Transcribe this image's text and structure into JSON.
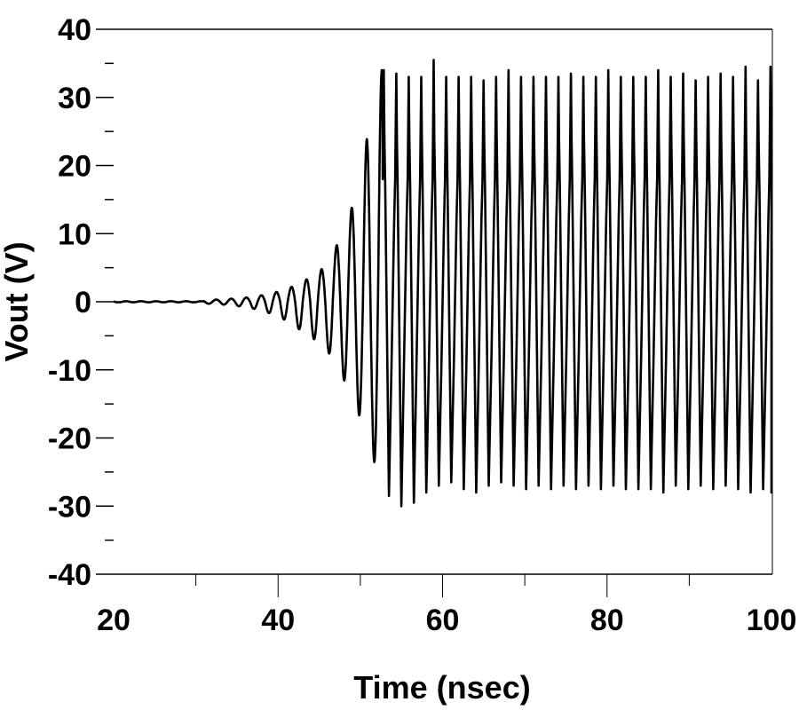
{
  "chart_data": {
    "type": "line",
    "title": "",
    "xlabel": "Time (nsec)",
    "ylabel": "Vout (V)",
    "xlim": [
      17.8,
      100
    ],
    "ylim": [
      -40,
      40
    ],
    "x_ticks": [
      20,
      40,
      60,
      80,
      100
    ],
    "x_minor_ticks": [
      30,
      50,
      70,
      90
    ],
    "y_ticks": [
      40,
      30,
      20,
      10,
      0,
      -10,
      -20,
      -30,
      -40
    ],
    "y_minor_ticks": [
      35,
      25,
      15,
      5,
      -5,
      -15,
      -25,
      -35
    ],
    "grid": false,
    "legend": null,
    "line_color": "#000000",
    "series": [
      {
        "name": "Vout",
        "description": "Oscillator start-up: flat near 0 V from 20 to ~31 ns, exponentially growing oscillation (period ~1.8 ns) from ~31 to ~52 ns, then saturated steady-state oscillation with peaks ~+33 to +35 V (shoulder near +17 to +24 V) and troughs ~-26 to -29 V through 100 ns",
        "period_ns": 1.83,
        "growth_onset_ns": 31,
        "saturation_ns": 53,
        "envelope_points": [
          {
            "t": 20,
            "peak": 0.1,
            "trough": -0.1
          },
          {
            "t": 32,
            "peak": 0.3,
            "trough": -0.3
          },
          {
            "t": 36,
            "peak": 0.6,
            "trough": -0.8
          },
          {
            "t": 40,
            "peak": 1.5,
            "trough": -2.2
          },
          {
            "t": 43,
            "peak": 3.0,
            "trough": -4.5
          },
          {
            "t": 45.5,
            "peak": 5.0,
            "trough": -6.5
          },
          {
            "t": 47.2,
            "peak": 8.5,
            "trough": -9.5
          },
          {
            "t": 49,
            "peak": 14,
            "trough": -14.5
          },
          {
            "t": 50.8,
            "peak": 24,
            "trough": -19.5
          },
          {
            "t": 52.6,
            "peak": 34,
            "trough": -28.5
          },
          {
            "t": 59.2,
            "peak": 35.5,
            "trough": -30
          },
          {
            "t": 100,
            "peak": 34,
            "trough": -27.5
          }
        ],
        "steady_peaks_V": [
          34,
          33.5,
          33,
          33,
          35.5,
          33,
          33,
          33,
          32.5,
          33,
          34,
          33,
          33,
          33,
          33,
          33.5,
          33,
          33,
          34,
          33,
          33,
          33,
          34,
          33,
          33.5,
          32.5,
          33,
          33.5,
          33,
          34.5,
          32.5,
          34.5
        ],
        "steady_troughs_V": [
          -28.5,
          -30,
          -29.5,
          -28,
          -27,
          -26.5,
          -27.5,
          -28,
          -27,
          -26.5,
          -27,
          -27.5,
          -27,
          -27.5,
          -27,
          -27.5,
          -27,
          -27.5,
          -27,
          -27.5,
          -27.5,
          -27.5,
          -28,
          -27,
          -27.5,
          -27,
          -27.5,
          -27,
          -27.5,
          -28,
          -27.5,
          -28
        ]
      }
    ]
  }
}
